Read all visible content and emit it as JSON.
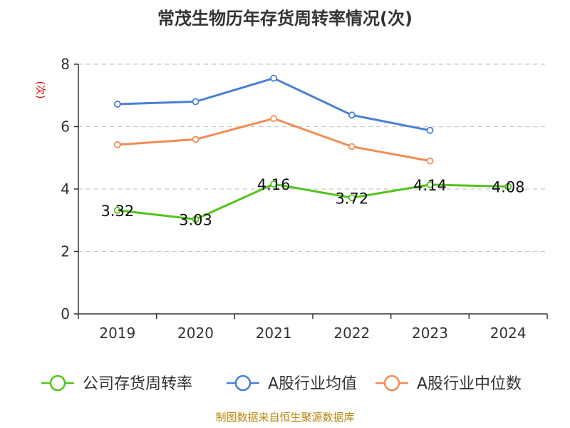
{
  "chart_data": {
    "type": "line",
    "title": "常茂生物历年存货周转率情况(次)",
    "ylabel": "(次)",
    "xlabel": "",
    "categories": [
      "2019",
      "2020",
      "2021",
      "2022",
      "2023",
      "2024"
    ],
    "yticks": [
      "0",
      "2",
      "4",
      "6",
      "8"
    ],
    "ylim": [
      0,
      8
    ],
    "grid": true,
    "legend_position": "bottom",
    "series": [
      {
        "name": "公司存货周转率",
        "color": "#52c41a",
        "values": [
          3.32,
          3.03,
          4.16,
          3.72,
          4.14,
          4.08
        ],
        "labels": [
          "3.32",
          "3.03",
          "4.16",
          "3.72",
          "4.14",
          "4.08"
        ]
      },
      {
        "name": "A股行业均值",
        "color": "#4a7fd6",
        "values": [
          6.72,
          6.8,
          7.55,
          6.37,
          5.88,
          null
        ]
      },
      {
        "name": "A股行业中位数",
        "color": "#f28c55",
        "values": [
          5.42,
          5.59,
          6.26,
          5.36,
          4.9,
          null
        ]
      }
    ]
  },
  "source": "制图数据来自恒生聚源数据库"
}
